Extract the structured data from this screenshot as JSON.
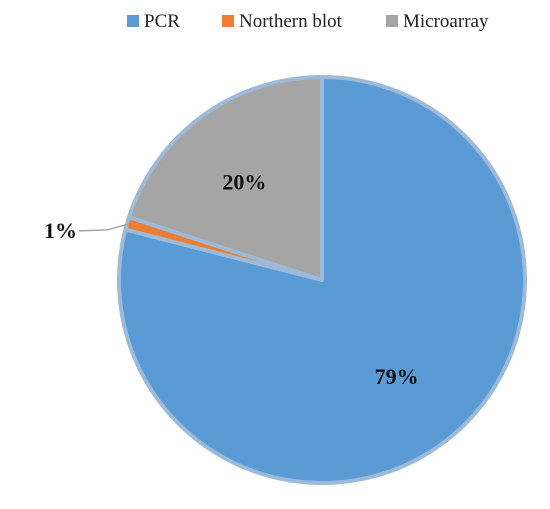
{
  "chart_data": {
    "type": "pie",
    "title": "",
    "series": [
      {
        "name": "PCR",
        "value": 79,
        "label": "79%",
        "color": "#5B9BD5"
      },
      {
        "name": "Northern blot",
        "value": 1,
        "label": "1%",
        "color": "#ED7D31"
      },
      {
        "name": "Microarray",
        "value": 20,
        "label": "20%",
        "color": "#A5A5A5"
      }
    ],
    "unit": "%",
    "start_angle_deg": 0,
    "direction": "clockwise",
    "legend_position": "top",
    "slice_border_color": "#9DBBD8"
  }
}
